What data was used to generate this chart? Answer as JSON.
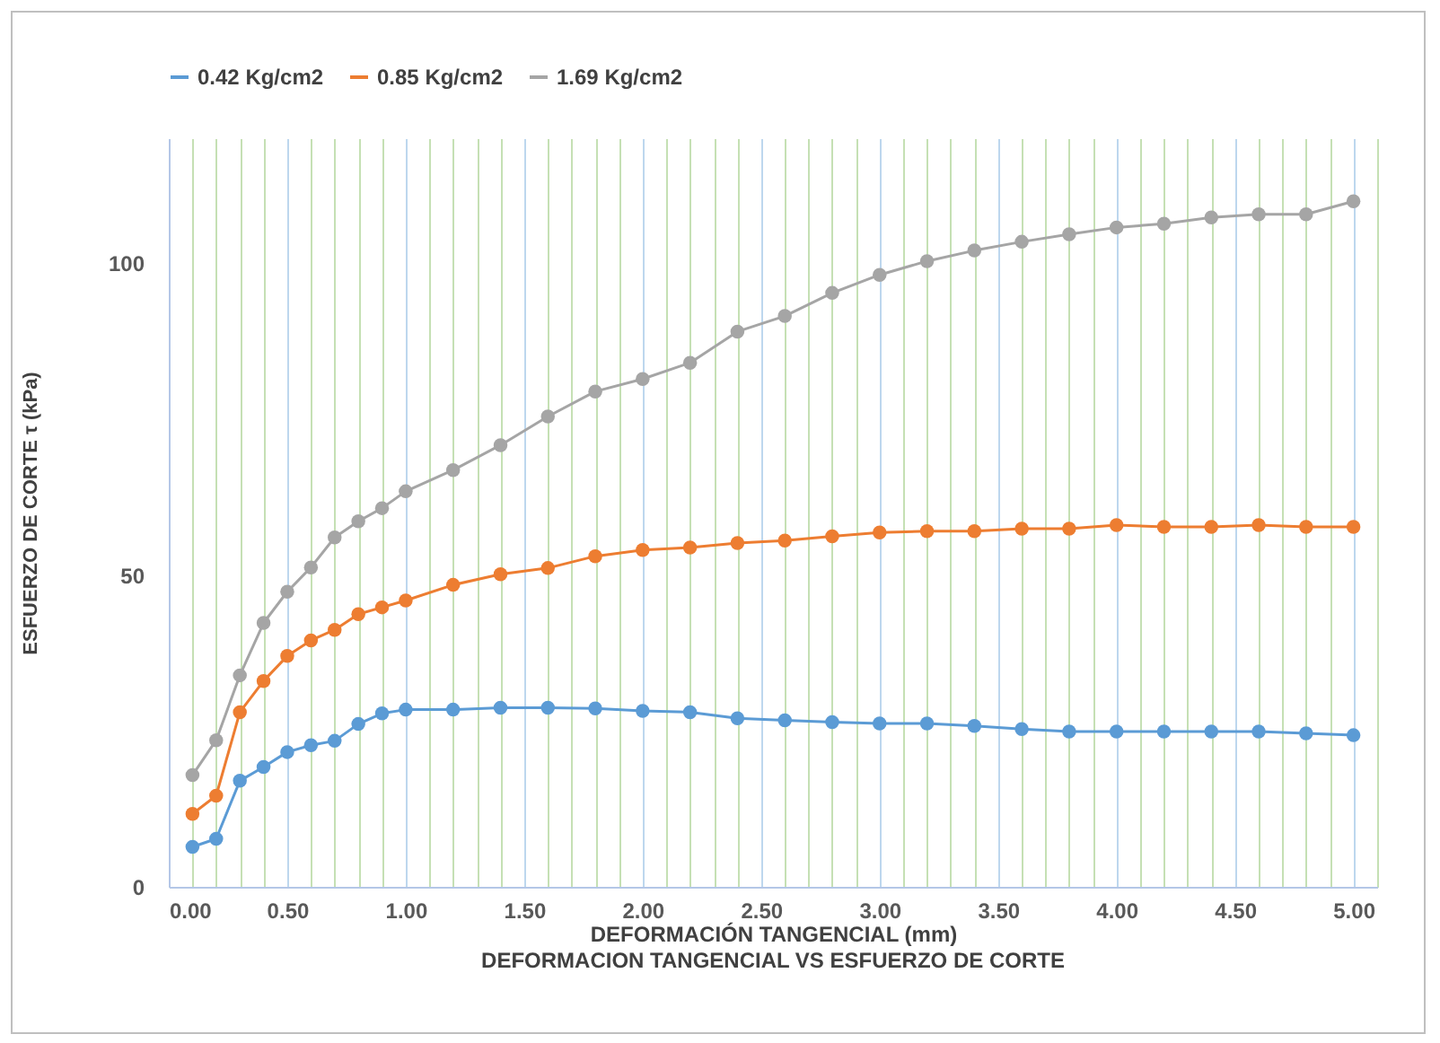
{
  "chart_data": {
    "type": "line",
    "title": "DEFORMACION TANGENCIAL VS ESFUERZO DE CORTE",
    "xlabel": "DEFORMACIÓN TANGENCIAL (mm)",
    "ylabel": "ESFUERZO DE CORTE τ (kPa)",
    "x": [
      0.1,
      0.2,
      0.3,
      0.4,
      0.5,
      0.6,
      0.7,
      0.8,
      0.9,
      1.0,
      1.2,
      1.4,
      1.6,
      1.8,
      2.0,
      2.2,
      2.4,
      2.6,
      2.8,
      3.0,
      3.2,
      3.4,
      3.6,
      3.8,
      4.0,
      4.2,
      4.4,
      4.6,
      4.8,
      5.0
    ],
    "series": [
      {
        "name": "0.42 Kg/cm2",
        "color": "#5b9bd5",
        "values": [
          6.4,
          7.7,
          17,
          19.2,
          21.6,
          22.7,
          23.4,
          26.1,
          27.8,
          28.4,
          28.4,
          28.7,
          28.7,
          28.6,
          28.2,
          28,
          27,
          26.7,
          26.4,
          26.2,
          26.2,
          25.8,
          25.3,
          24.9,
          24.9,
          24.9,
          24.9,
          24.9,
          24.6,
          24.3
        ]
      },
      {
        "name": "0.85 Kg/cm2",
        "color": "#ed7d31",
        "values": [
          11.7,
          14.6,
          28,
          33,
          37,
          39.5,
          41.2,
          43.7,
          44.8,
          45.9,
          48.4,
          50.1,
          51.1,
          53,
          54,
          54.4,
          55.1,
          55.5,
          56.2,
          56.8,
          57,
          57,
          57.4,
          57.4,
          58,
          57.7,
          57.7,
          58,
          57.7,
          57.7
        ]
      },
      {
        "name": "1.69 Kg/cm2",
        "color": "#a5a5a5",
        "values": [
          17.9,
          23.5,
          33.9,
          42.3,
          47.3,
          51.2,
          56,
          58.6,
          60.7,
          63.4,
          66.8,
          70.8,
          75.4,
          79.4,
          81.4,
          84,
          89,
          91.5,
          95.2,
          98.1,
          100.3,
          102,
          103.4,
          104.6,
          105.7,
          106.3,
          107.3,
          107.8,
          107.8,
          109.9
        ]
      }
    ],
    "xlim": [
      0,
      5.1
    ],
    "xticks": [
      {
        "value": 0,
        "label": "0.00"
      },
      {
        "value": 0.1,
        "label": null
      },
      {
        "value": 0.2,
        "label": null
      },
      {
        "value": 0.3,
        "label": null
      },
      {
        "value": 0.4,
        "label": null
      },
      {
        "value": 0.5,
        "label": "0.50"
      },
      {
        "value": 0.6,
        "label": null
      },
      {
        "value": 0.7,
        "label": null
      },
      {
        "value": 0.8,
        "label": null
      },
      {
        "value": 0.9,
        "label": null
      },
      {
        "value": 1,
        "label": "1.00"
      },
      {
        "value": 1.1,
        "label": null
      },
      {
        "value": 1.2,
        "label": null
      },
      {
        "value": 1.3,
        "label": null
      },
      {
        "value": 1.4,
        "label": null
      },
      {
        "value": 1.5,
        "label": "1.50"
      },
      {
        "value": 1.6,
        "label": null
      },
      {
        "value": 1.7,
        "label": null
      },
      {
        "value": 1.8,
        "label": null
      },
      {
        "value": 1.9,
        "label": null
      },
      {
        "value": 2,
        "label": "2.00"
      },
      {
        "value": 2.1,
        "label": null
      },
      {
        "value": 2.2,
        "label": null
      },
      {
        "value": 2.3,
        "label": null
      },
      {
        "value": 2.4,
        "label": null
      },
      {
        "value": 2.5,
        "label": "2.50"
      },
      {
        "value": 2.6,
        "label": null
      },
      {
        "value": 2.7,
        "label": null
      },
      {
        "value": 2.8,
        "label": null
      },
      {
        "value": 2.9,
        "label": null
      },
      {
        "value": 3,
        "label": "3.00"
      },
      {
        "value": 3.1,
        "label": null
      },
      {
        "value": 3.2,
        "label": null
      },
      {
        "value": 3.3,
        "label": null
      },
      {
        "value": 3.4,
        "label": null
      },
      {
        "value": 3.5,
        "label": "3.50"
      },
      {
        "value": 3.6,
        "label": null
      },
      {
        "value": 3.7,
        "label": null
      },
      {
        "value": 3.8,
        "label": null
      },
      {
        "value": 3.9,
        "label": null
      },
      {
        "value": 4,
        "label": "4.00"
      },
      {
        "value": 4.1,
        "label": null
      },
      {
        "value": 4.2,
        "label": null
      },
      {
        "value": 4.3,
        "label": null
      },
      {
        "value": 4.4,
        "label": null
      },
      {
        "value": 4.5,
        "label": "4.50"
      },
      {
        "value": 4.6,
        "label": null
      },
      {
        "value": 4.7,
        "label": null
      },
      {
        "value": 4.8,
        "label": null
      },
      {
        "value": 4.9,
        "label": null
      },
      {
        "value": 5,
        "label": "5.00"
      },
      {
        "value": 5.1,
        "label": null
      }
    ],
    "ylim": [
      0,
      120
    ],
    "yticks": [
      0,
      50,
      100
    ],
    "grid": "x",
    "legend": "top",
    "marker": "circle",
    "line_style": "solid"
  }
}
